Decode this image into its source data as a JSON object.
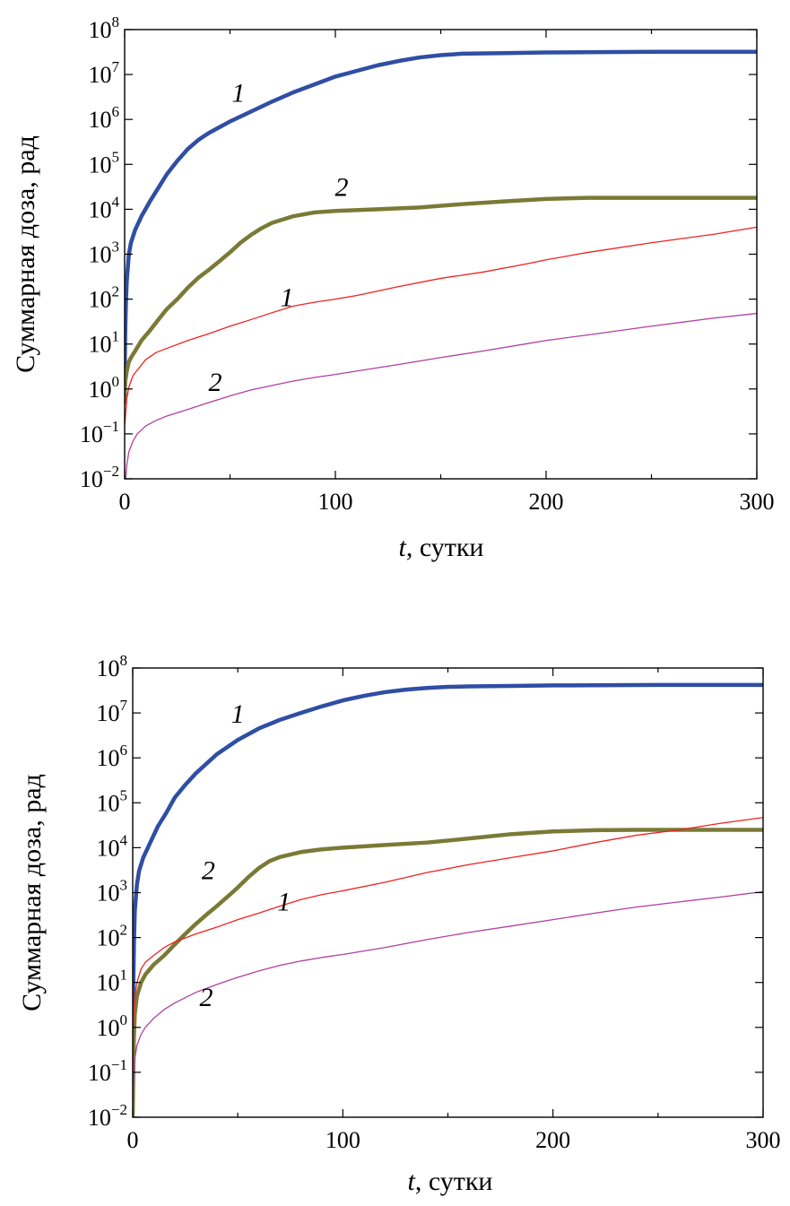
{
  "chart_data": [
    {
      "type": "line",
      "xlabel": "t, сутки",
      "xlabel_var": "t",
      "xlabel_unit": ", сутки",
      "ylabel": "Суммарная доза, рад",
      "xlim": [
        0,
        300
      ],
      "ylim": [
        0.01,
        100000000
      ],
      "yscale": "log",
      "xticks": [
        "0",
        "100",
        "200",
        "300"
      ],
      "yticks": [
        {
          "base": "10",
          "exp": "−2"
        },
        {
          "base": "10",
          "exp": "−1"
        },
        {
          "base": "10",
          "exp": "0"
        },
        {
          "base": "10",
          "exp": "1"
        },
        {
          "base": "10",
          "exp": "2"
        },
        {
          "base": "10",
          "exp": "3"
        },
        {
          "base": "10",
          "exp": "4"
        },
        {
          "base": "10",
          "exp": "5"
        },
        {
          "base": "10",
          "exp": "6"
        },
        {
          "base": "10",
          "exp": "7"
        },
        {
          "base": "10",
          "exp": "8"
        }
      ],
      "grid": false,
      "series": [
        {
          "name": "1",
          "color": "#2f4ea4",
          "width": 4.5,
          "label_at": [
            54,
            2500000
          ],
          "points": [
            [
              0,
              2
            ],
            [
              0.3,
              20
            ],
            [
              0.6,
              80
            ],
            [
              1,
              250
            ],
            [
              2,
              1000
            ],
            [
              3,
              1800
            ],
            [
              5,
              3500
            ],
            [
              8,
              7000
            ],
            [
              12,
              15000
            ],
            [
              16,
              30000
            ],
            [
              20,
              60000
            ],
            [
              25,
              120000
            ],
            [
              30,
              220000
            ],
            [
              35,
              350000
            ],
            [
              40,
              500000
            ],
            [
              50,
              900000
            ],
            [
              60,
              1500000
            ],
            [
              70,
              2500000
            ],
            [
              80,
              4000000
            ],
            [
              90,
              6000000
            ],
            [
              100,
              9000000
            ],
            [
              110,
              12000000
            ],
            [
              120,
              16000000
            ],
            [
              130,
              20000000
            ],
            [
              140,
              24000000
            ],
            [
              150,
              27000000
            ],
            [
              160,
              29000000
            ],
            [
              180,
              30000000
            ],
            [
              200,
              31000000
            ],
            [
              250,
              32000000
            ],
            [
              300,
              32000000
            ]
          ]
        },
        {
          "name": "2",
          "color": "#7a7a36",
          "width": 4.5,
          "label_at": [
            103,
            20000
          ],
          "points": [
            [
              0,
              0.5
            ],
            [
              0.3,
              1.5
            ],
            [
              1,
              2.5
            ],
            [
              2,
              4
            ],
            [
              3,
              5
            ],
            [
              5,
              7
            ],
            [
              8,
              12
            ],
            [
              12,
              20
            ],
            [
              16,
              35
            ],
            [
              20,
              60
            ],
            [
              25,
              100
            ],
            [
              30,
              180
            ],
            [
              35,
              300
            ],
            [
              40,
              450
            ],
            [
              45,
              700
            ],
            [
              50,
              1100
            ],
            [
              55,
              1800
            ],
            [
              60,
              2700
            ],
            [
              65,
              3800
            ],
            [
              70,
              5000
            ],
            [
              80,
              7000
            ],
            [
              90,
              8500
            ],
            [
              100,
              9200
            ],
            [
              120,
              10000
            ],
            [
              140,
              11000
            ],
            [
              160,
              13000
            ],
            [
              180,
              15000
            ],
            [
              200,
              17000
            ],
            [
              220,
              18000
            ],
            [
              300,
              18000
            ]
          ]
        },
        {
          "name": "1",
          "color": "#ee2222",
          "width": 1.3,
          "label_at": [
            77,
            70
          ],
          "points": [
            [
              0,
              0.15
            ],
            [
              0.5,
              0.3
            ],
            [
              1,
              0.6
            ],
            [
              2,
              1.1
            ],
            [
              4,
              2
            ],
            [
              7,
              3
            ],
            [
              10,
              4.5
            ],
            [
              15,
              6.5
            ],
            [
              20,
              8
            ],
            [
              30,
              12
            ],
            [
              40,
              17
            ],
            [
              50,
              25
            ],
            [
              60,
              35
            ],
            [
              70,
              50
            ],
            [
              80,
              70
            ],
            [
              90,
              85
            ],
            [
              100,
              100
            ],
            [
              110,
              120
            ],
            [
              130,
              190
            ],
            [
              150,
              290
            ],
            [
              170,
              400
            ],
            [
              190,
              600
            ],
            [
              200,
              750
            ],
            [
              220,
              1100
            ],
            [
              250,
              1800
            ],
            [
              280,
              2800
            ],
            [
              300,
              4000
            ]
          ]
        },
        {
          "name": "2",
          "color": "#b040a0",
          "width": 1.3,
          "label_at": [
            43,
            0.9
          ],
          "points": [
            [
              0,
              0.005
            ],
            [
              1,
              0.02
            ],
            [
              2,
              0.04
            ],
            [
              4,
              0.07
            ],
            [
              6,
              0.1
            ],
            [
              10,
              0.15
            ],
            [
              15,
              0.2
            ],
            [
              20,
              0.25
            ],
            [
              30,
              0.35
            ],
            [
              40,
              0.5
            ],
            [
              50,
              0.7
            ],
            [
              60,
              0.95
            ],
            [
              70,
              1.2
            ],
            [
              80,
              1.5
            ],
            [
              90,
              1.8
            ],
            [
              100,
              2.1
            ],
            [
              110,
              2.5
            ],
            [
              130,
              3.5
            ],
            [
              150,
              5
            ],
            [
              170,
              7
            ],
            [
              190,
              10
            ],
            [
              200,
              12
            ],
            [
              220,
              16
            ],
            [
              250,
              25
            ],
            [
              280,
              38
            ],
            [
              300,
              48
            ]
          ]
        }
      ]
    },
    {
      "type": "line",
      "xlabel": "t, сутки",
      "xlabel_var": "t",
      "xlabel_unit": ", сутки",
      "ylabel": "Суммарная доза, рад",
      "xlim": [
        0,
        300
      ],
      "ylim": [
        0.01,
        100000000
      ],
      "yscale": "log",
      "xticks": [
        "0",
        "100",
        "200",
        "300"
      ],
      "yticks": [
        {
          "base": "10",
          "exp": "−2"
        },
        {
          "base": "10",
          "exp": "−1"
        },
        {
          "base": "10",
          "exp": "0"
        },
        {
          "base": "10",
          "exp": "1"
        },
        {
          "base": "10",
          "exp": "2"
        },
        {
          "base": "10",
          "exp": "3"
        },
        {
          "base": "10",
          "exp": "4"
        },
        {
          "base": "10",
          "exp": "5"
        },
        {
          "base": "10",
          "exp": "6"
        },
        {
          "base": "10",
          "exp": "7"
        },
        {
          "base": "10",
          "exp": "8"
        }
      ],
      "grid": false,
      "series": [
        {
          "name": "1",
          "color": "#2f4ea4",
          "width": 4.5,
          "label_at": [
            50,
            6000000
          ],
          "points": [
            [
              0,
              1
            ],
            [
              0.3,
              10
            ],
            [
              0.6,
              80
            ],
            [
              1,
              400
            ],
            [
              2,
              1500
            ],
            [
              3,
              3000
            ],
            [
              5,
              6000
            ],
            [
              8,
              12000
            ],
            [
              12,
              30000
            ],
            [
              16,
              60000
            ],
            [
              20,
              130000
            ],
            [
              25,
              250000
            ],
            [
              30,
              450000
            ],
            [
              40,
              1200000
            ],
            [
              50,
              2500000
            ],
            [
              60,
              4500000
            ],
            [
              70,
              7000000
            ],
            [
              80,
              10000000
            ],
            [
              90,
              14000000
            ],
            [
              100,
              19000000
            ],
            [
              110,
              24000000
            ],
            [
              120,
              29000000
            ],
            [
              130,
              33000000
            ],
            [
              140,
              36000000
            ],
            [
              150,
              38000000
            ],
            [
              160,
              39000000
            ],
            [
              180,
              40000000
            ],
            [
              200,
              41000000
            ],
            [
              250,
              42000000
            ],
            [
              300,
              42000000
            ]
          ]
        },
        {
          "name": "2",
          "color": "#7a7a36",
          "width": 4.5,
          "label_at": [
            36,
            2000
          ],
          "points": [
            [
              0,
              0.01
            ],
            [
              0.5,
              0.5
            ],
            [
              1,
              2
            ],
            [
              2,
              5
            ],
            [
              4,
              10
            ],
            [
              6,
              15
            ],
            [
              10,
              25
            ],
            [
              15,
              40
            ],
            [
              20,
              70
            ],
            [
              25,
              120
            ],
            [
              30,
              200
            ],
            [
              35,
              320
            ],
            [
              40,
              500
            ],
            [
              45,
              800
            ],
            [
              50,
              1300
            ],
            [
              55,
              2200
            ],
            [
              60,
              3500
            ],
            [
              65,
              5000
            ],
            [
              70,
              6200
            ],
            [
              80,
              8000
            ],
            [
              90,
              9200
            ],
            [
              100,
              10000
            ],
            [
              120,
              11500
            ],
            [
              140,
              13000
            ],
            [
              160,
              16000
            ],
            [
              180,
              20000
            ],
            [
              200,
              23000
            ],
            [
              220,
              24500
            ],
            [
              240,
              25000
            ],
            [
              300,
              25000
            ]
          ]
        },
        {
          "name": "1",
          "color": "#ee2222",
          "width": 1.3,
          "label_at": [
            72,
            400
          ],
          "points": [
            [
              0,
              0.5
            ],
            [
              0.5,
              2
            ],
            [
              1,
              5
            ],
            [
              2,
              10
            ],
            [
              4,
              20
            ],
            [
              6,
              28
            ],
            [
              10,
              40
            ],
            [
              15,
              60
            ],
            [
              20,
              80
            ],
            [
              30,
              120
            ],
            [
              40,
              170
            ],
            [
              50,
              250
            ],
            [
              60,
              350
            ],
            [
              70,
              500
            ],
            [
              80,
              700
            ],
            [
              90,
              900
            ],
            [
              100,
              1100
            ],
            [
              120,
              1700
            ],
            [
              140,
              2800
            ],
            [
              160,
              4200
            ],
            [
              180,
              6000
            ],
            [
              200,
              8500
            ],
            [
              220,
              13000
            ],
            [
              240,
              19000
            ],
            [
              260,
              25000
            ],
            [
              280,
              35000
            ],
            [
              300,
              47000
            ]
          ]
        },
        {
          "name": "2",
          "color": "#b040a0",
          "width": 1.3,
          "label_at": [
            35,
            3
          ],
          "points": [
            [
              0,
              0.02
            ],
            [
              0.5,
              0.08
            ],
            [
              1,
              0.2
            ],
            [
              2,
              0.4
            ],
            [
              4,
              0.7
            ],
            [
              6,
              1
            ],
            [
              10,
              1.6
            ],
            [
              15,
              2.5
            ],
            [
              20,
              3.5
            ],
            [
              30,
              6
            ],
            [
              40,
              9
            ],
            [
              50,
              13
            ],
            [
              60,
              18
            ],
            [
              70,
              24
            ],
            [
              80,
              30
            ],
            [
              90,
              36
            ],
            [
              100,
              42
            ],
            [
              120,
              60
            ],
            [
              140,
              90
            ],
            [
              160,
              130
            ],
            [
              180,
              180
            ],
            [
              200,
              250
            ],
            [
              220,
              350
            ],
            [
              240,
              480
            ],
            [
              260,
              620
            ],
            [
              280,
              800
            ],
            [
              300,
              1050
            ]
          ]
        }
      ]
    }
  ]
}
